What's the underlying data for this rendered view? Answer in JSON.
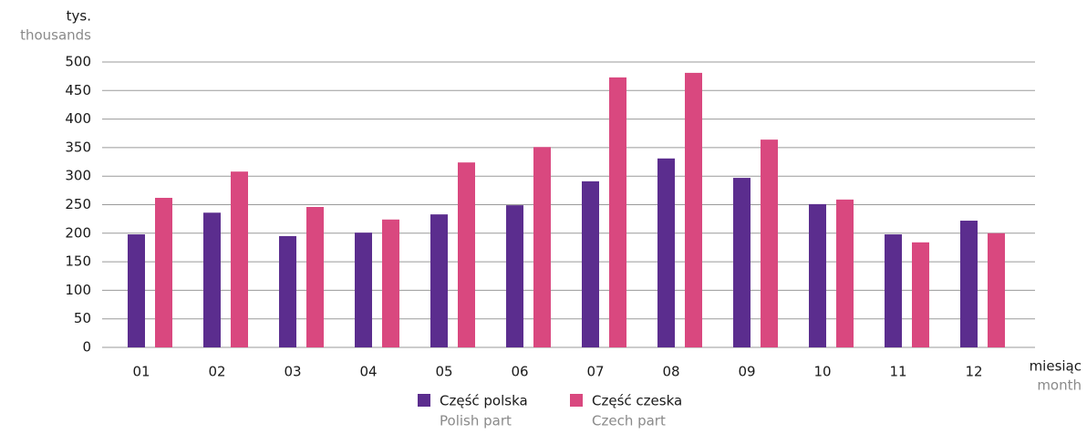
{
  "chart_data": {
    "type": "bar",
    "y_label": "tys.",
    "y_label_en": "thousands",
    "x_label": "miesiąc",
    "x_label_en": "month",
    "categories": [
      "01",
      "02",
      "03",
      "04",
      "05",
      "06",
      "07",
      "08",
      "09",
      "10",
      "11",
      "12"
    ],
    "series": [
      {
        "name": "Część polska",
        "name_en": "Polish part",
        "color": "#5b2d8e",
        "values": [
          198,
          236,
          195,
          201,
          233,
          249,
          291,
          331,
          297,
          251,
          198,
          222
        ]
      },
      {
        "name": "Część czeska",
        "name_en": "Czech part",
        "color": "#d9487f",
        "values": [
          262,
          308,
          246,
          224,
          324,
          351,
          473,
          481,
          364,
          259,
          184,
          200
        ]
      }
    ],
    "ylim": [
      0,
      500
    ],
    "yticks": [
      0,
      50,
      100,
      150,
      200,
      250,
      300,
      350,
      400,
      450,
      500
    ],
    "grid": true
  }
}
